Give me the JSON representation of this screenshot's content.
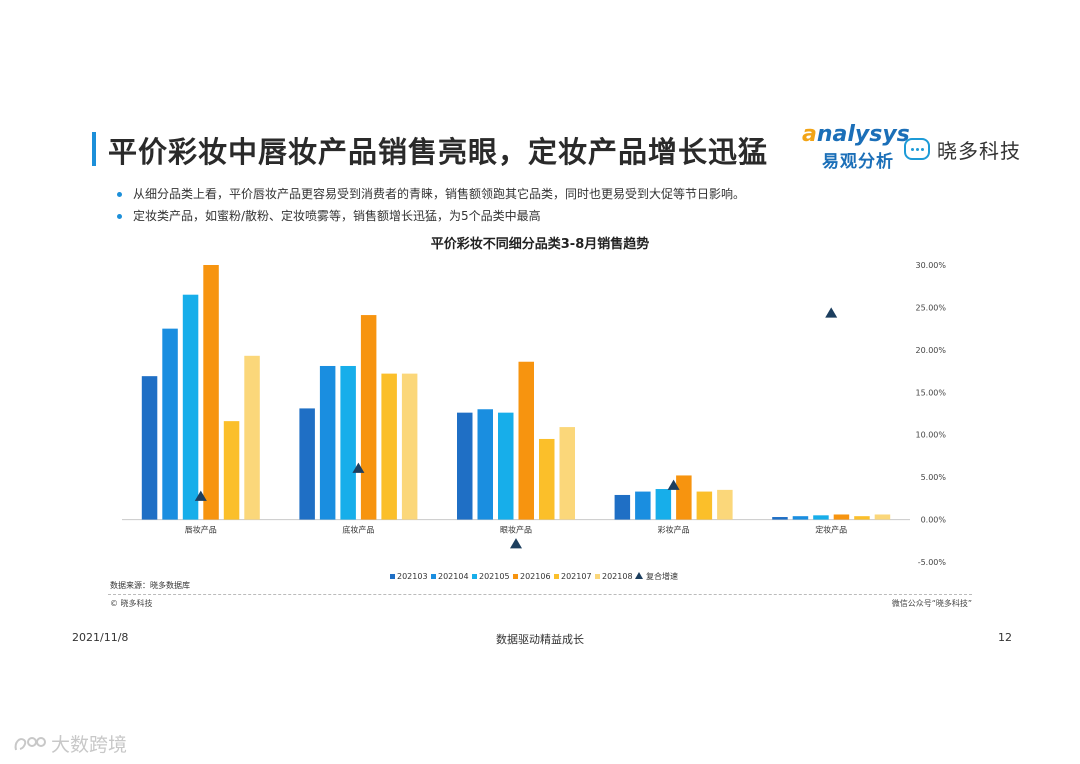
{
  "header": {
    "title": "平价彩妆中唇妆产品销售亮眼，定妆产品增长迅猛",
    "logo_analysys_en": "nalysys",
    "logo_analysys_cn": "易观分析",
    "logo_xiaoduo": "晓多科技"
  },
  "bullets": [
    "从细分品类上看，平价唇妆产品更容易受到消费者的青睐，销售额领跑其它品类，同时也更易受到大促等节日影响。",
    "定妆类产品，如蜜粉/散粉、定妆喷雾等，销售额增长迅猛，为5个品类中最高"
  ],
  "chart_data": {
    "type": "bar",
    "title": "平价彩妆不同细分品类3-8月销售趋势",
    "categories": [
      "唇妆产品",
      "底妆产品",
      "眼妆产品",
      "彩妆产品",
      "定妆产品"
    ],
    "series": [
      {
        "name": "202103",
        "color": "#1f6fc5",
        "values": [
          16.9,
          13.1,
          12.6,
          2.9,
          0.3
        ]
      },
      {
        "name": "202104",
        "color": "#1a8ee0",
        "values": [
          22.5,
          18.1,
          13.0,
          3.3,
          0.4
        ]
      },
      {
        "name": "202105",
        "color": "#17aeea",
        "values": [
          26.5,
          18.1,
          12.6,
          3.6,
          0.5
        ]
      },
      {
        "name": "202106",
        "color": "#f7940f",
        "values": [
          30.0,
          24.1,
          18.6,
          5.2,
          0.6
        ]
      },
      {
        "name": "202107",
        "color": "#fbbf2a",
        "values": [
          11.6,
          17.2,
          9.5,
          3.3,
          0.4
        ]
      },
      {
        "name": "202108",
        "color": "#fbd77a",
        "values": [
          19.3,
          17.2,
          10.9,
          3.5,
          0.6
        ]
      }
    ],
    "line_series": {
      "name": "复合增速",
      "marker": "triangle",
      "color": "#1c3e5e",
      "values": [
        2.7,
        6.0,
        -2.9,
        4.0,
        24.3
      ]
    },
    "y_axis": {
      "min": -5,
      "max": 30,
      "ticks": [
        "30.00%",
        "25.00%",
        "20.00%",
        "15.00%",
        "10.00%",
        "5.00%",
        "0.00%",
        "-5.00%"
      ]
    },
    "legend": "bottom-center"
  },
  "source": "数据来源：晓多数据库",
  "copyright": "© 晓多科技",
  "wechat": "微信公众号“晓多科技”",
  "footer": {
    "date": "2021/11/8",
    "center": "数据驱动精益成长",
    "page": "12"
  },
  "watermark": "大数跨境"
}
